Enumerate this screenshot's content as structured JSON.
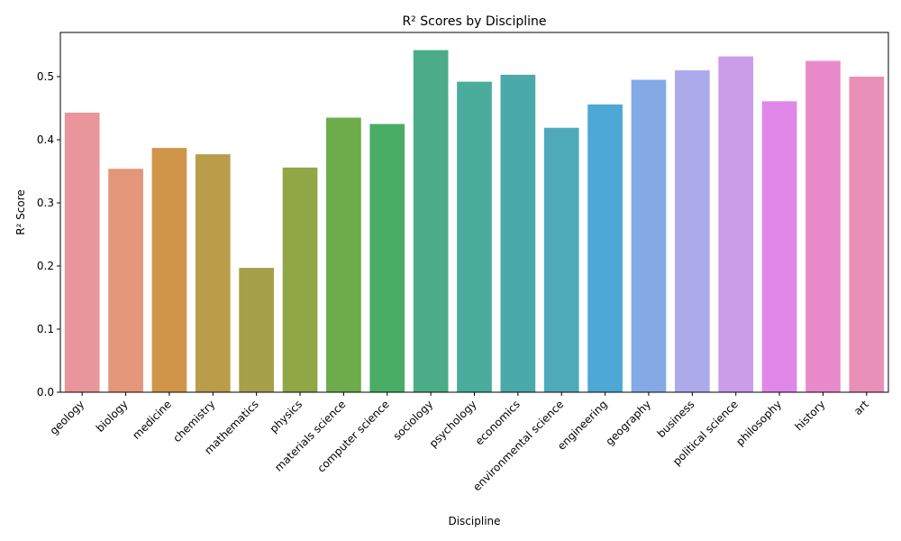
{
  "chart_data": {
    "type": "bar",
    "title": "R² Scores by Discipline",
    "xlabel": "Discipline",
    "ylabel": "R² Score",
    "ylim": [
      0,
      0.57
    ],
    "yticks": [
      0.0,
      0.1,
      0.2,
      0.3,
      0.4,
      0.5
    ],
    "ytick_labels": [
      "0.0",
      "0.1",
      "0.2",
      "0.3",
      "0.4",
      "0.5"
    ],
    "grid": false,
    "legend": "none",
    "categories": [
      "geology",
      "biology",
      "medicine",
      "chemistry",
      "mathematics",
      "physics",
      "materials science",
      "computer science",
      "sociology",
      "psychology",
      "economics",
      "environmental science",
      "engineering",
      "geography",
      "business",
      "political science",
      "philosophy",
      "history",
      "art"
    ],
    "values": [
      0.443,
      0.354,
      0.387,
      0.377,
      0.197,
      0.356,
      0.435,
      0.425,
      0.542,
      0.492,
      0.503,
      0.419,
      0.456,
      0.495,
      0.51,
      0.532,
      0.461,
      0.525,
      0.5
    ],
    "colors": [
      "#e8969b",
      "#e4967a",
      "#d09548",
      "#bb9c4b",
      "#a7a04b",
      "#91a645",
      "#6dac4a",
      "#49ad66",
      "#4bac88",
      "#4aac9a",
      "#4aaaa9",
      "#4eaabb",
      "#4ea8d6",
      "#84aae5",
      "#adaaeb",
      "#c99de8",
      "#e187ea",
      "#e98acb",
      "#e990b8"
    ]
  }
}
